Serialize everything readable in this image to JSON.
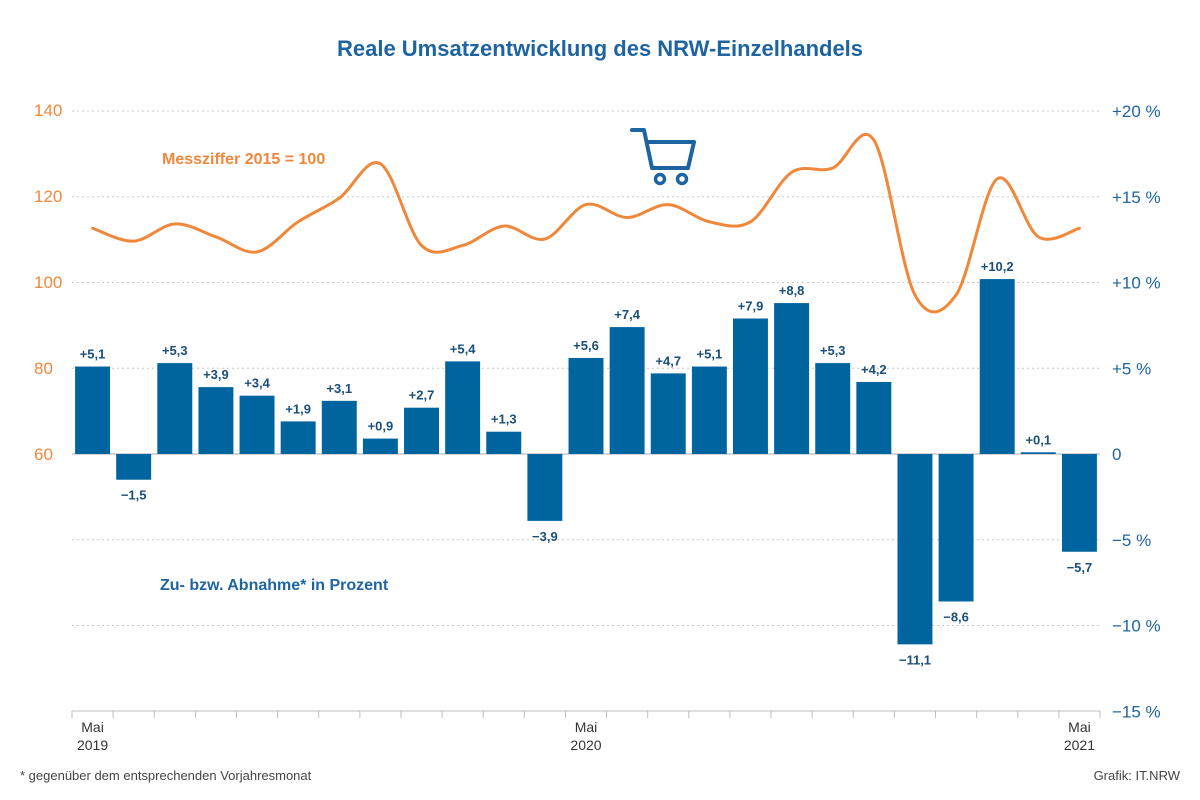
{
  "chart_data": {
    "type": "bar",
    "title": "Reale Umsatzentwicklung des NRW-Einzelhandels",
    "bar_label_annotation": "Zu- bzw. Abnahme* in Prozent",
    "line_label_annotation": "Messziffer 2015 = 100",
    "left_axis": {
      "range": [
        60,
        140
      ],
      "ticks": [
        "60",
        "80",
        "100",
        "120",
        "140"
      ]
    },
    "right_axis": {
      "range": [
        -15,
        20
      ],
      "ticks": [
        "−15 %",
        "−10 %",
        "−5 %",
        "0",
        "+5 %",
        "+10 %",
        "+15 %",
        "+20 %"
      ]
    },
    "x_labels": [
      {
        "index": 0,
        "month": "Mai",
        "year": "2019"
      },
      {
        "index": 12,
        "month": "Mai",
        "year": "2020"
      },
      {
        "index": 24,
        "month": "Mai",
        "year": "2021"
      }
    ],
    "bars": {
      "values": [
        5.1,
        -1.5,
        5.3,
        3.9,
        3.4,
        1.9,
        3.1,
        0.9,
        2.7,
        5.4,
        1.3,
        -3.9,
        5.6,
        7.4,
        4.7,
        5.1,
        7.9,
        8.8,
        5.3,
        4.2,
        -11.1,
        -8.6,
        10.2,
        0.1,
        -5.7
      ],
      "labels": [
        "+5,1",
        "−1,5",
        "+5,3",
        "+3,9",
        "+3,4",
        "+1,9",
        "+3,1",
        "+0,9",
        "+2,7",
        "+5,4",
        "+1,3",
        "−3,9",
        "+5,6",
        "+7,4",
        "+4,7",
        "+5,1",
        "+7,9",
        "+8,8",
        "+5,3",
        "+4,2",
        "−11,1",
        "−8,6",
        "+10,2",
        "+0,1",
        "−5,7"
      ]
    },
    "index_line": {
      "values": [
        112.5,
        109.5,
        113.5,
        110.5,
        107,
        114,
        119.5,
        127.5,
        108.5,
        108.5,
        113,
        110,
        118,
        115,
        118,
        114,
        114,
        125.5,
        126.5,
        133,
        97,
        97,
        124,
        110.5,
        112.5
      ]
    },
    "grid": true,
    "colors": {
      "bars": "#00659f",
      "line": "#f0883c",
      "text_blue": "#1e64a0",
      "grid": "#c8c8c8"
    }
  },
  "icon": "shopping-cart-icon",
  "footer": {
    "note": "*  gegenüber dem entsprechenden Vorjahresmonat",
    "source": "Grafik: IT.NRW"
  }
}
